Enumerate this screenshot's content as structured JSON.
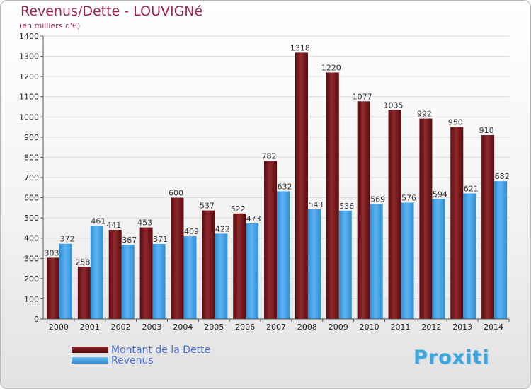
{
  "title": "Revenus/Dette - LOUVIGNé",
  "subtitle": "(en milliers d'€)",
  "colors": {
    "dette": "#6e0c12",
    "revenus": "#3c9fe6",
    "title": "#a0264b",
    "legend_text": "#4a6ee0"
  },
  "legend": [
    {
      "label": "Montant de la Dette",
      "color": "#6e0c12"
    },
    {
      "label": "Revenus",
      "color": "#3c9fe6"
    }
  ],
  "logo": {
    "text": "Proxiti"
  },
  "chart_data": {
    "type": "bar",
    "categories": [
      "2000",
      "2001",
      "2002",
      "2003",
      "2004",
      "2005",
      "2006",
      "2007",
      "2008",
      "2009",
      "2010",
      "2011",
      "2012",
      "2013",
      "2014"
    ],
    "series": [
      {
        "name": "Montant de la Dette",
        "values": [
          303,
          258,
          441,
          453,
          600,
          537,
          522,
          782,
          1318,
          1220,
          1077,
          1035,
          992,
          950,
          910
        ]
      },
      {
        "name": "Revenus",
        "values": [
          372,
          461,
          367,
          371,
          409,
          422,
          473,
          632,
          543,
          536,
          569,
          576,
          594,
          621,
          682
        ]
      }
    ],
    "ylim": [
      0,
      1400
    ],
    "yticks": [
      0,
      100,
      200,
      300,
      400,
      500,
      600,
      700,
      800,
      900,
      1000,
      1100,
      1200,
      1300,
      1400
    ],
    "grid": true,
    "legend_position": "bottom-left"
  }
}
